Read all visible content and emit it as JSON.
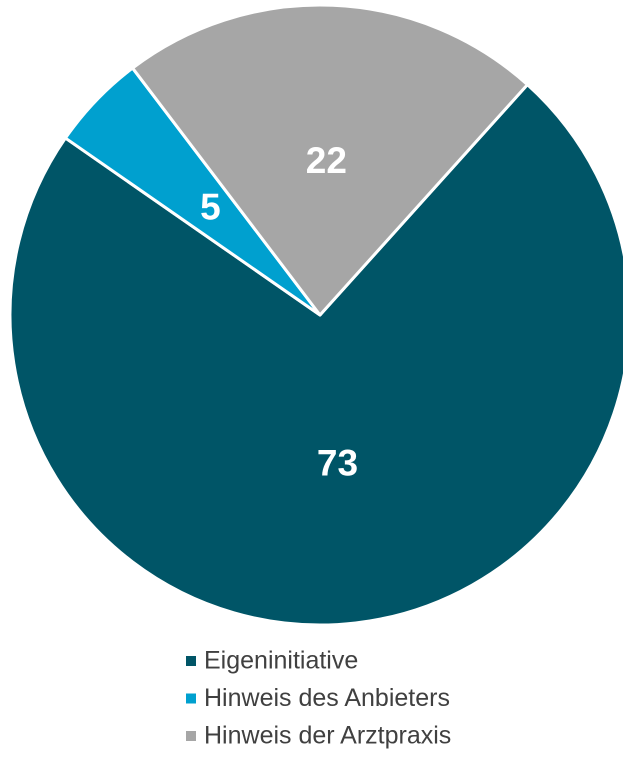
{
  "chart_data": {
    "type": "pie",
    "categories": [
      "Eigeninitiative",
      "Hinweis des Anbieters",
      "Hinweis der Arztpraxis"
    ],
    "values": [
      73,
      5,
      22
    ],
    "colors": [
      "#005567",
      "#00a0cf",
      "#a6a6a6"
    ]
  }
}
